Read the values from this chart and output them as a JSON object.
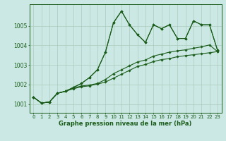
{
  "title": "Graphe pression niveau de la mer (hPa)",
  "bg_color": "#cce8e4",
  "grid_color": "#aaccbb",
  "line_color": "#1a5c1a",
  "xlim_min": -0.5,
  "xlim_max": 23.5,
  "ylim_min": 1000.55,
  "ylim_max": 1006.1,
  "yticks": [
    1001,
    1002,
    1003,
    1004,
    1005
  ],
  "xticks": [
    0,
    1,
    2,
    3,
    4,
    5,
    6,
    7,
    8,
    9,
    10,
    11,
    12,
    13,
    14,
    15,
    16,
    17,
    18,
    19,
    20,
    21,
    22,
    23
  ],
  "series": [
    [
      1001.35,
      1001.05,
      1001.1,
      1001.55,
      1001.65,
      1001.85,
      1002.05,
      1002.35,
      1002.75,
      1003.65,
      1005.15,
      1005.75,
      1005.05,
      1004.55,
      1004.15,
      1005.05,
      1004.85,
      1005.05,
      1004.35,
      1004.35,
      1005.25,
      1005.05,
      1005.05,
      1003.75
    ],
    [
      1001.35,
      1001.05,
      1001.1,
      1001.55,
      1001.65,
      1001.85,
      1002.05,
      1002.35,
      1002.75,
      1003.65,
      1005.15,
      1005.75,
      1005.05,
      1004.55,
      1004.15,
      1005.05,
      1004.85,
      1005.05,
      1004.35,
      1004.35,
      1005.25,
      1005.05,
      1005.05,
      1003.75
    ],
    [
      1001.35,
      1001.05,
      1001.1,
      1001.55,
      1001.65,
      1001.82,
      1001.92,
      1001.97,
      1002.05,
      1002.25,
      1002.55,
      1002.75,
      1002.95,
      1003.15,
      1003.25,
      1003.45,
      1003.55,
      1003.65,
      1003.72,
      1003.77,
      1003.85,
      1003.92,
      1004.02,
      1003.68
    ],
    [
      1001.35,
      1001.05,
      1001.1,
      1001.55,
      1001.65,
      1001.78,
      1001.88,
      1001.93,
      1002.02,
      1002.12,
      1002.32,
      1002.52,
      1002.72,
      1002.92,
      1003.02,
      1003.17,
      1003.27,
      1003.32,
      1003.42,
      1003.47,
      1003.52,
      1003.57,
      1003.62,
      1003.68
    ]
  ],
  "title_fontsize": 6.0,
  "tick_fontsize": 5.0,
  "marker_size": 1.8,
  "line_width": 0.8
}
